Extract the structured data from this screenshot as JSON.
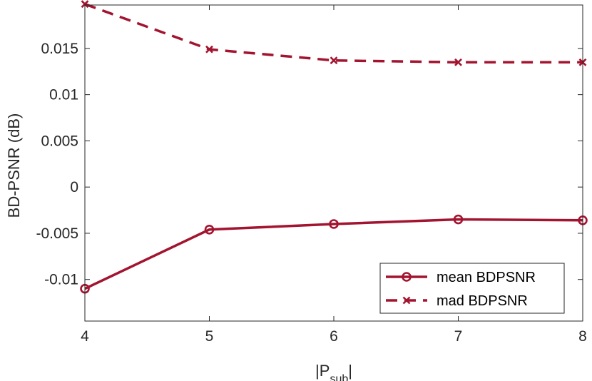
{
  "chart_data": {
    "type": "line",
    "x": [
      4,
      5,
      6,
      7,
      8
    ],
    "series": [
      {
        "name": "mean BDPSNR",
        "values": [
          -0.011,
          -0.0046,
          -0.004,
          -0.0035,
          -0.0036
        ],
        "line_style": "solid",
        "marker": "circle"
      },
      {
        "name": "mad BDPSNR",
        "values": [
          0.0198,
          0.0149,
          0.0137,
          0.0135,
          0.0135
        ],
        "line_style": "dashed",
        "marker": "x"
      }
    ],
    "xlabel_main": "|P",
    "xlabel_sub": "sub",
    "xlabel_end": "|",
    "ylabel": "BD-PSNR (dB)",
    "xlim": [
      4,
      8
    ],
    "ylim": [
      -0.0145,
      0.0197
    ],
    "xticks": [
      4,
      5,
      6,
      7,
      8
    ],
    "xtick_labels": [
      "4",
      "5",
      "6",
      "7",
      "8"
    ],
    "yticks": [
      -0.01,
      -0.005,
      0,
      0.005,
      0.01,
      0.015
    ],
    "ytick_labels": [
      "-0.01",
      "-0.005",
      "0",
      "0.005",
      "0.01",
      "0.015"
    ],
    "grid": false,
    "legend_position": "bottom-right",
    "colors": {
      "series": "#A2142F",
      "axis": "#262626",
      "background": "#ffffff"
    }
  }
}
